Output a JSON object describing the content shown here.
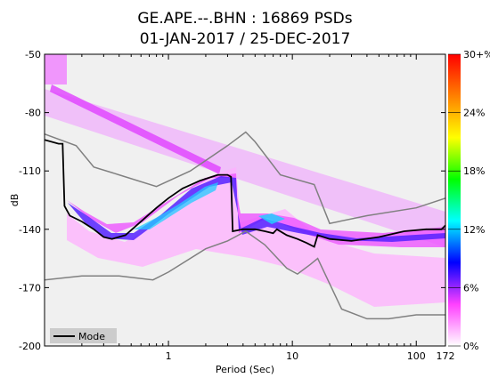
{
  "chart_data": {
    "type": "heatmap",
    "title_line1": "GE.APE.--.BHN : 16869 PSDs",
    "title_line2": "01-JAN-2017 / 25-DEC-2017",
    "xlabel": "Period (Sec)",
    "ylabel": "dB",
    "x_scale": "log",
    "xlim": [
      0.1,
      172
    ],
    "ylim": [
      -200,
      -50
    ],
    "x_ticks": [
      {
        "value": 1,
        "label": "1"
      },
      {
        "value": 10,
        "label": "10"
      },
      {
        "value": 100,
        "label": "100"
      },
      {
        "value": 172,
        "label": "172"
      }
    ],
    "y_ticks": [
      {
        "value": -50,
        "label": "-50"
      },
      {
        "value": -80,
        "label": "-80"
      },
      {
        "value": -110,
        "label": "-110"
      },
      {
        "value": -140,
        "label": "-140"
      },
      {
        "value": -170,
        "label": "-170"
      },
      {
        "value": -200,
        "label": "-200"
      }
    ],
    "colorbar": {
      "labels": [
        "0%",
        "6%",
        "12%",
        "18%",
        "24%",
        "30+%"
      ],
      "values": [
        0,
        6,
        12,
        18,
        24,
        30
      ],
      "colors": [
        "#ffffff",
        "#ff40ff",
        "#0000ff",
        "#00ffff",
        "#00ff00",
        "#ffff00",
        "#ff8000",
        "#ff0000"
      ]
    },
    "legend": {
      "entries": [
        "Mode"
      ],
      "placement": "lower-left"
    },
    "series": [
      {
        "name": "Mode",
        "color": "#000000",
        "points": [
          [
            0.1,
            -94
          ],
          [
            0.13,
            -96
          ],
          [
            0.14,
            -96
          ],
          [
            0.145,
            -128
          ],
          [
            0.16,
            -133
          ],
          [
            0.2,
            -136
          ],
          [
            0.25,
            -140
          ],
          [
            0.3,
            -144
          ],
          [
            0.35,
            -145
          ],
          [
            0.45,
            -143
          ],
          [
            0.6,
            -136
          ],
          [
            0.8,
            -129
          ],
          [
            1.0,
            -124
          ],
          [
            1.3,
            -119
          ],
          [
            1.8,
            -115
          ],
          [
            2.5,
            -112
          ],
          [
            3.0,
            -112
          ],
          [
            3.2,
            -113
          ],
          [
            3.3,
            -141
          ],
          [
            4,
            -140
          ],
          [
            5,
            -140
          ],
          [
            6,
            -141
          ],
          [
            7,
            -142
          ],
          [
            7.5,
            -140
          ],
          [
            9,
            -143
          ],
          [
            11,
            -145
          ],
          [
            13,
            -147
          ],
          [
            15,
            -149
          ],
          [
            16,
            -143
          ],
          [
            20,
            -145
          ],
          [
            30,
            -146
          ],
          [
            50,
            -144
          ],
          [
            80,
            -141
          ],
          [
            120,
            -140
          ],
          [
            160,
            -140
          ],
          [
            172,
            -138
          ]
        ]
      },
      {
        "color": "#808080",
        "points": [
          [
            0.1,
            -91
          ],
          [
            0.18,
            -97
          ],
          [
            0.25,
            -108
          ],
          [
            0.4,
            -112
          ],
          [
            0.8,
            -118
          ],
          [
            1.5,
            -110
          ],
          [
            3,
            -97
          ],
          [
            4.2,
            -90
          ],
          [
            5,
            -95
          ],
          [
            8,
            -112
          ],
          [
            15,
            -117
          ],
          [
            20,
            -137
          ],
          [
            40,
            -133
          ],
          [
            100,
            -129
          ],
          [
            172,
            -124
          ]
        ]
      },
      {
        "color": "#808080",
        "points": [
          [
            0.1,
            -166
          ],
          [
            0.2,
            -164
          ],
          [
            0.4,
            -164
          ],
          [
            0.75,
            -166
          ],
          [
            1.0,
            -162
          ],
          [
            2,
            -150
          ],
          [
            3,
            -146
          ],
          [
            4.2,
            -141
          ],
          [
            6,
            -148
          ],
          [
            9,
            -160
          ],
          [
            11,
            -163
          ],
          [
            14,
            -158
          ],
          [
            16,
            -155
          ],
          [
            25,
            -181
          ],
          [
            40,
            -186
          ],
          [
            60,
            -186
          ],
          [
            100,
            -184
          ],
          [
            172,
            -184
          ]
        ]
      }
    ]
  }
}
